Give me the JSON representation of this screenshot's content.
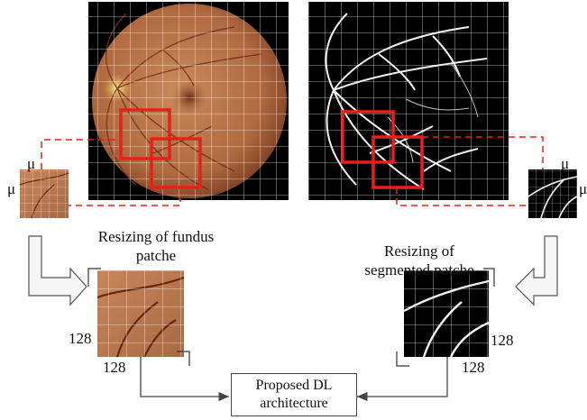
{
  "fundus_caption_line1": "Resizing of fundus",
  "fundus_caption_line2": "patche",
  "segmented_caption_line1": "Resizing of",
  "segmented_caption_line2": "segmented patche",
  "patch_size_symbol": "μ",
  "resized_dimension": "128",
  "output_box_line1": "Proposed DL",
  "output_box_line2": "architecture",
  "colors": {
    "highlight_box": "#e8201a",
    "fundus_tone": "#b8734a",
    "vessel": "#f2f2f2",
    "grid": "#ffffff",
    "arrow": "#444444"
  }
}
